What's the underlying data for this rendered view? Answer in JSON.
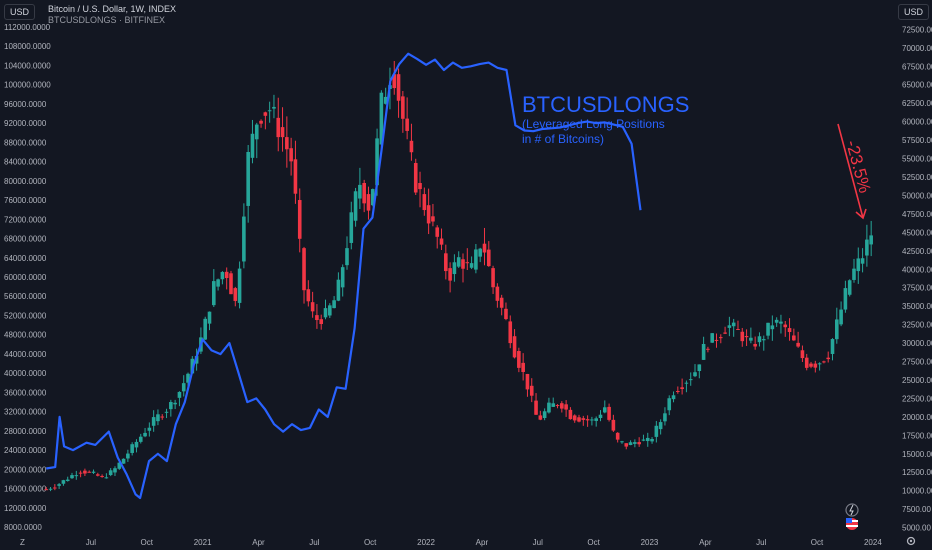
{
  "left_axis_tag": "USD",
  "right_axis_tag": "USD",
  "header": {
    "title": "Bitcoin / U.S. Dollar, 1W, INDEX",
    "subtitle": "BTCUSDLONGS · BITFINEX"
  },
  "footer": {
    "left_icon": "Z",
    "right_icon": "gear-icon"
  },
  "annotation": {
    "title": "BTCUSDLONGS",
    "line1": "(Leveraged Long Positions",
    "line2": "in # of Bitcoins)",
    "change": "-23.5%"
  },
  "colors": {
    "background": "#131722",
    "up": "#26a69a",
    "down": "#f23645",
    "longs": "#2962ff",
    "arrow": "#f23645"
  },
  "chart_data": {
    "type": "line",
    "left_axis": {
      "ticks": [
        "112000.0000",
        "108000.0000",
        "104000.0000",
        "100000.0000",
        "96000.0000",
        "92000.0000",
        "88000.0000",
        "84000.0000",
        "80000.0000",
        "76000.0000",
        "72000.0000",
        "68000.0000",
        "64000.0000",
        "60000.0000",
        "56000.0000",
        "52000.0000",
        "48000.0000",
        "44000.0000",
        "40000.0000",
        "36000.0000",
        "32000.0000",
        "28000.0000",
        "24000.0000",
        "20000.0000",
        "16000.0000",
        "12000.0000",
        "8000.0000"
      ],
      "range": [
        7000,
        113000
      ]
    },
    "right_axis": {
      "ticks": [
        "72500.00",
        "70000.00",
        "67500.00",
        "65000.00",
        "62500.00",
        "60000.00",
        "57500.00",
        "55000.00",
        "52500.00",
        "50000.00",
        "47500.00",
        "45000.00",
        "42500.00",
        "40000.00",
        "37500.00",
        "35000.00",
        "32500.00",
        "30000.00",
        "27500.00",
        "25000.00",
        "22500.00",
        "20000.00",
        "17500.00",
        "15000.00",
        "12500.00",
        "10000.00",
        "7500.00",
        "5000.00"
      ],
      "range": [
        4400,
        73500
      ]
    },
    "x_axis": {
      "ticks": [
        {
          "label": "Jul",
          "t": 0.5
        },
        {
          "label": "Oct",
          "t": 0.75
        },
        {
          "label": "2021",
          "t": 1.0
        },
        {
          "label": "Apr",
          "t": 1.25
        },
        {
          "label": "Jul",
          "t": 1.5
        },
        {
          "label": "Oct",
          "t": 1.75
        },
        {
          "label": "2022",
          "t": 2.0
        },
        {
          "label": "Apr",
          "t": 2.25
        },
        {
          "label": "Jul",
          "t": 2.5
        },
        {
          "label": "Oct",
          "t": 2.75
        },
        {
          "label": "2023",
          "t": 3.0
        },
        {
          "label": "Apr",
          "t": 3.25
        },
        {
          "label": "Jul",
          "t": 3.5
        },
        {
          "label": "Oct",
          "t": 3.75
        },
        {
          "label": "2024",
          "t": 4.0
        }
      ],
      "range": [
        0.29,
        4.09
      ]
    },
    "price": {
      "name": "Bitcoin / U.S. Dollar",
      "points": [
        [
          0.3,
          15900
        ],
        [
          0.35,
          16800
        ],
        [
          0.4,
          18300
        ],
        [
          0.45,
          19800
        ],
        [
          0.5,
          19200
        ],
        [
          0.55,
          18300
        ],
        [
          0.6,
          19700
        ],
        [
          0.65,
          22500
        ],
        [
          0.7,
          25500
        ],
        [
          0.75,
          28500
        ],
        [
          0.8,
          31000
        ],
        [
          0.85,
          33000
        ],
        [
          0.9,
          36500
        ],
        [
          0.95,
          41500
        ],
        [
          1.0,
          48000
        ],
        [
          1.05,
          58000
        ],
        [
          1.1,
          62000
        ],
        [
          1.15,
          54000
        ],
        [
          1.2,
          84000
        ],
        [
          1.25,
          94000
        ],
        [
          1.3,
          95000
        ],
        [
          1.35,
          90000
        ],
        [
          1.4,
          84000
        ],
        [
          1.45,
          58000
        ],
        [
          1.5,
          51000
        ],
        [
          1.55,
          52000
        ],
        [
          1.6,
          56000
        ],
        [
          1.65,
          68000
        ],
        [
          1.7,
          80000
        ],
        [
          1.75,
          74000
        ],
        [
          1.8,
          96000
        ],
        [
          1.85,
          104000
        ],
        [
          1.9,
          92000
        ],
        [
          1.95,
          80000
        ],
        [
          2.0,
          74000
        ],
        [
          2.05,
          68000
        ],
        [
          2.1,
          60000
        ],
        [
          2.15,
          64000
        ],
        [
          2.2,
          61000
        ],
        [
          2.25,
          68000
        ],
        [
          2.3,
          58000
        ],
        [
          2.35,
          52000
        ],
        [
          2.4,
          44000
        ],
        [
          2.45,
          38000
        ],
        [
          2.5,
          30000
        ],
        [
          2.55,
          33000
        ],
        [
          2.6,
          34000
        ],
        [
          2.65,
          31000
        ],
        [
          2.7,
          30500
        ],
        [
          2.75,
          30000
        ],
        [
          2.8,
          33000
        ],
        [
          2.85,
          26000
        ],
        [
          2.9,
          25000
        ],
        [
          2.95,
          26000
        ],
        [
          3.0,
          25800
        ],
        [
          3.05,
          30000
        ],
        [
          3.1,
          36000
        ],
        [
          3.15,
          38000
        ],
        [
          3.2,
          40000
        ],
        [
          3.25,
          46000
        ],
        [
          3.3,
          47500
        ],
        [
          3.35,
          50000
        ],
        [
          3.4,
          48500
        ],
        [
          3.45,
          46000
        ],
        [
          3.5,
          47000
        ],
        [
          3.55,
          50500
        ],
        [
          3.6,
          50000
        ],
        [
          3.65,
          46000
        ],
        [
          3.7,
          42000
        ],
        [
          3.75,
          42000
        ],
        [
          3.8,
          44000
        ],
        [
          3.85,
          52000
        ],
        [
          3.9,
          60000
        ],
        [
          3.95,
          64000
        ],
        [
          4.0,
          70000
        ]
      ]
    },
    "longs": {
      "name": "BTCUSDLONGS",
      "points": [
        [
          0.3,
          13000
        ],
        [
          0.34,
          13200
        ],
        [
          0.36,
          20000
        ],
        [
          0.38,
          16000
        ],
        [
          0.42,
          15500
        ],
        [
          0.48,
          16500
        ],
        [
          0.52,
          16200
        ],
        [
          0.58,
          18000
        ],
        [
          0.62,
          14500
        ],
        [
          0.66,
          12200
        ],
        [
          0.7,
          9500
        ],
        [
          0.72,
          9000
        ],
        [
          0.76,
          14000
        ],
        [
          0.8,
          15000
        ],
        [
          0.84,
          14000
        ],
        [
          0.88,
          19000
        ],
        [
          0.92,
          22000
        ],
        [
          0.96,
          27000
        ],
        [
          1.0,
          30500
        ],
        [
          1.04,
          29000
        ],
        [
          1.08,
          28500
        ],
        [
          1.12,
          30000
        ],
        [
          1.16,
          26000
        ],
        [
          1.2,
          22000
        ],
        [
          1.24,
          22500
        ],
        [
          1.28,
          21000
        ],
        [
          1.32,
          19000
        ],
        [
          1.36,
          18000
        ],
        [
          1.4,
          19000
        ],
        [
          1.44,
          18200
        ],
        [
          1.48,
          18500
        ],
        [
          1.52,
          21000
        ],
        [
          1.56,
          20000
        ],
        [
          1.6,
          24000
        ],
        [
          1.64,
          23800
        ],
        [
          1.68,
          32000
        ],
        [
          1.72,
          45500
        ],
        [
          1.76,
          47000
        ],
        [
          1.8,
          56000
        ],
        [
          1.84,
          65500
        ],
        [
          1.88,
          67800
        ],
        [
          1.92,
          69200
        ],
        [
          1.96,
          68500
        ],
        [
          2.0,
          67700
        ],
        [
          2.04,
          68400
        ],
        [
          2.08,
          67000
        ],
        [
          2.12,
          68000
        ],
        [
          2.16,
          67300
        ],
        [
          2.2,
          67500
        ],
        [
          2.24,
          67800
        ],
        [
          2.28,
          68000
        ],
        [
          2.32,
          67300
        ],
        [
          2.36,
          67000
        ],
        [
          2.4,
          59500
        ],
        [
          2.44,
          58800
        ],
        [
          2.48,
          58700
        ],
        [
          2.52,
          59000
        ],
        [
          2.56,
          59100
        ],
        [
          2.6,
          59200
        ],
        [
          2.64,
          59500
        ],
        [
          2.68,
          59800
        ],
        [
          2.72,
          60000
        ],
        [
          2.76,
          59800
        ],
        [
          2.8,
          59900
        ],
        [
          2.84,
          59600
        ],
        [
          2.88,
          59300
        ],
        [
          2.92,
          57000
        ],
        [
          2.96,
          48000
        ]
      ]
    }
  }
}
